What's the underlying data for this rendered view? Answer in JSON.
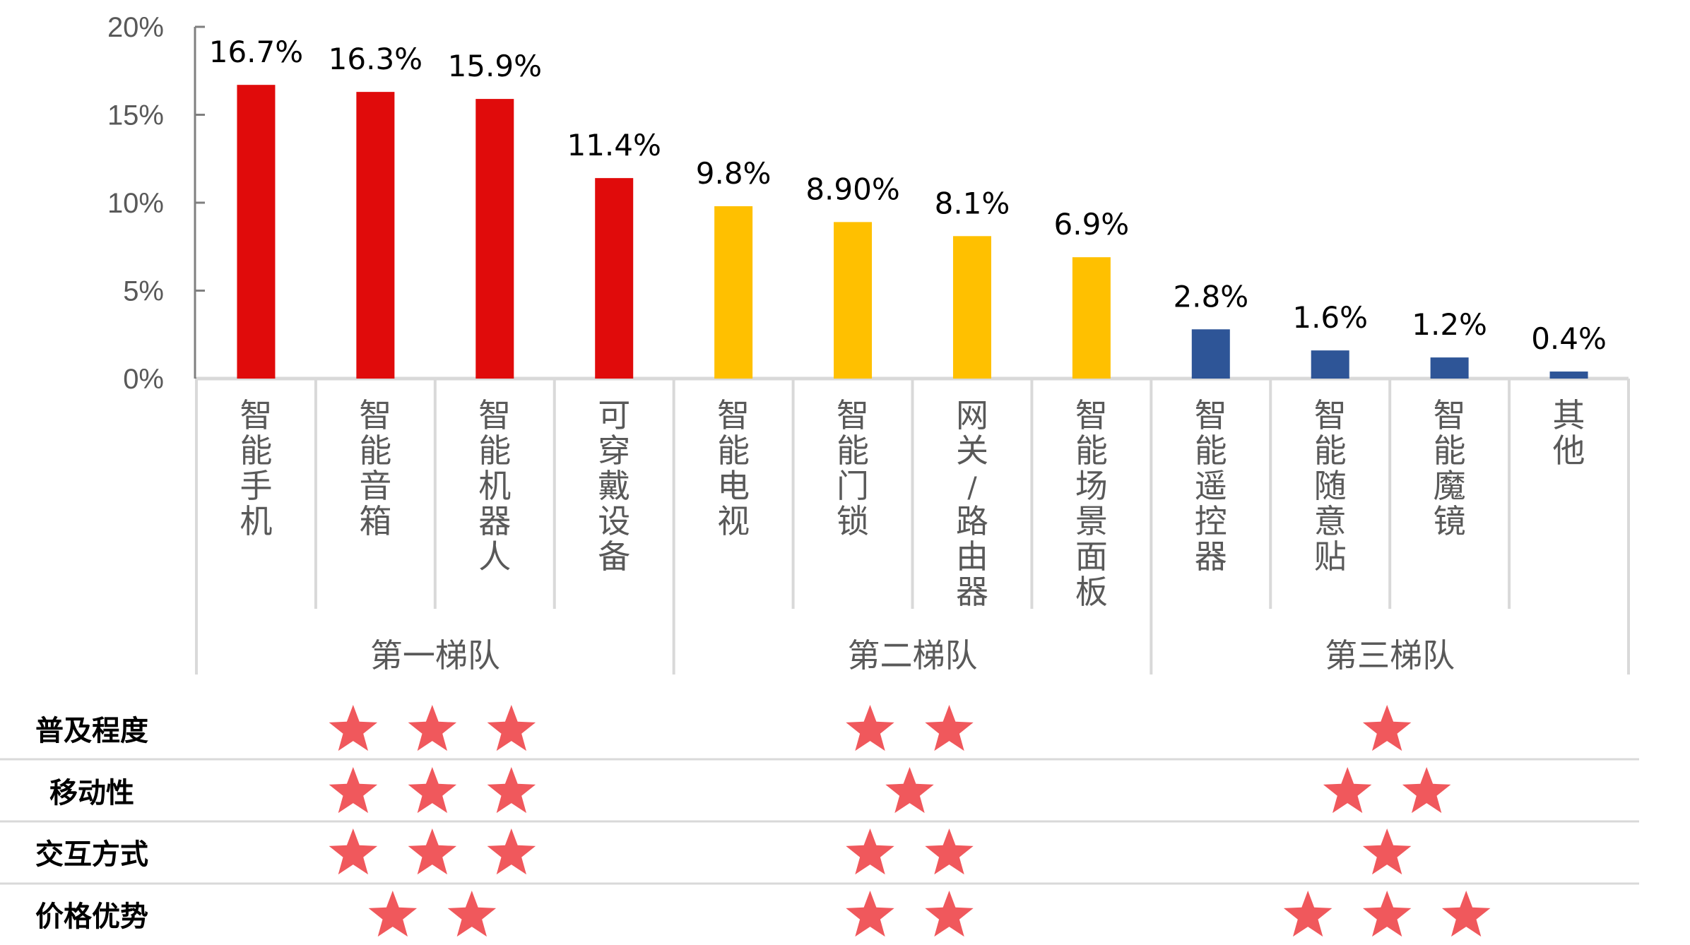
{
  "chart_data": {
    "type": "bar",
    "categories": [
      "智能手机",
      "智能音箱",
      "智能机器人",
      "可穿戴设备",
      "智能电视",
      "智能门锁",
      "网关/路由器",
      "智能场景面板",
      "智能遥控器",
      "智能随意贴",
      "智能魔镜",
      "其他"
    ],
    "values": [
      16.7,
      16.3,
      15.9,
      11.4,
      9.8,
      8.9,
      8.1,
      6.9,
      2.8,
      1.6,
      1.2,
      0.4
    ],
    "data_labels": [
      "16.7%",
      "16.3%",
      "15.9%",
      "11.4%",
      "9.8%",
      "8.90%",
      "8.1%",
      "6.9%",
      "2.8%",
      "1.6%",
      "1.2%",
      "0.4%"
    ],
    "bar_colors": [
      "#E00B0B",
      "#E00B0B",
      "#E00B0B",
      "#E00B0B",
      "#FFC000",
      "#FFC000",
      "#FFC000",
      "#FFC000",
      "#2E5597",
      "#2E5597",
      "#2E5597",
      "#2E5597"
    ],
    "ylim": [
      0,
      20
    ],
    "yticks": [
      0,
      5,
      10,
      15,
      20
    ],
    "ytick_labels": [
      "0%",
      "5%",
      "10%",
      "15%",
      "20%"
    ],
    "grid": false,
    "groups": [
      {
        "name": "第一梯队",
        "members": 4
      },
      {
        "name": "第二梯队",
        "members": 4
      },
      {
        "name": "第三梯队",
        "members": 4
      }
    ],
    "rating_table": {
      "star_color": "#F0585C",
      "rows": [
        {
          "label": "普及程度",
          "stars": [
            3,
            2,
            1
          ]
        },
        {
          "label": "移动性",
          "stars": [
            3,
            1,
            2
          ]
        },
        {
          "label": "交互方式",
          "stars": [
            3,
            2,
            1
          ]
        },
        {
          "label": "价格优势",
          "stars": [
            2,
            2,
            3
          ]
        }
      ]
    }
  }
}
